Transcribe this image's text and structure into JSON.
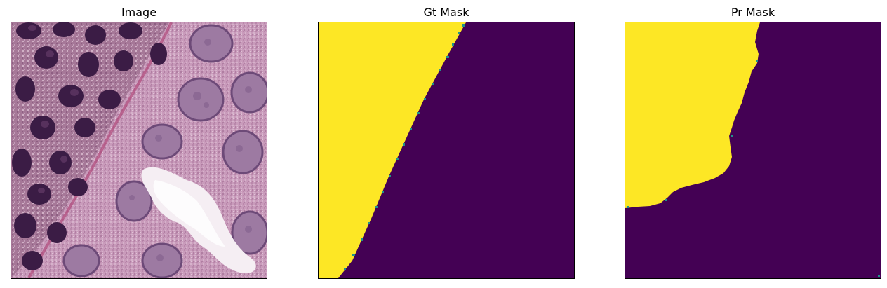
{
  "panels": [
    {
      "title": "Image"
    },
    {
      "title": "Gt Mask"
    },
    {
      "title": "Pr Mask"
    }
  ],
  "colors": {
    "mask_foreground": "#fde725",
    "mask_background": "#440154",
    "mask_edge": "#21918c",
    "tissue_base": "#c79aba",
    "nucleus_dark": "#3a1d43",
    "nucleus_mid": "#6a3f6e",
    "nucleus_light": "#9a7ca1",
    "lumen": "#f4eef2"
  }
}
